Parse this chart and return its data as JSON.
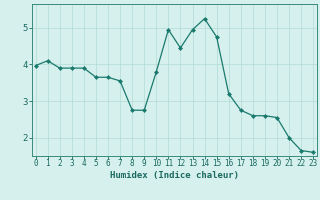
{
  "x": [
    0,
    1,
    2,
    3,
    4,
    5,
    6,
    7,
    8,
    9,
    10,
    11,
    12,
    13,
    14,
    15,
    16,
    17,
    18,
    19,
    20,
    21,
    22,
    23
  ],
  "y": [
    3.97,
    4.1,
    3.9,
    3.9,
    3.9,
    3.65,
    3.65,
    3.55,
    2.75,
    2.75,
    3.8,
    4.95,
    4.45,
    4.95,
    5.25,
    4.75,
    3.2,
    2.75,
    2.6,
    2.6,
    2.55,
    2.0,
    1.65,
    1.6
  ],
  "xlabel": "Humidex (Indice chaleur)",
  "ylim": [
    1.5,
    5.65
  ],
  "xlim": [
    -0.3,
    23.3
  ],
  "yticks": [
    2,
    3,
    4,
    5
  ],
  "xticks": [
    0,
    1,
    2,
    3,
    4,
    5,
    6,
    7,
    8,
    9,
    10,
    11,
    12,
    13,
    14,
    15,
    16,
    17,
    18,
    19,
    20,
    21,
    22,
    23
  ],
  "line_color": "#1a7a6e",
  "marker_color": "#1a7a6e",
  "bg_color": "#d6f0ed",
  "grid_color": "#b8ddd9",
  "axis_color": "#3a8a7e",
  "label_color": "#1a6a60",
  "tick_fontsize": 5.5,
  "xlabel_fontsize": 6.5
}
